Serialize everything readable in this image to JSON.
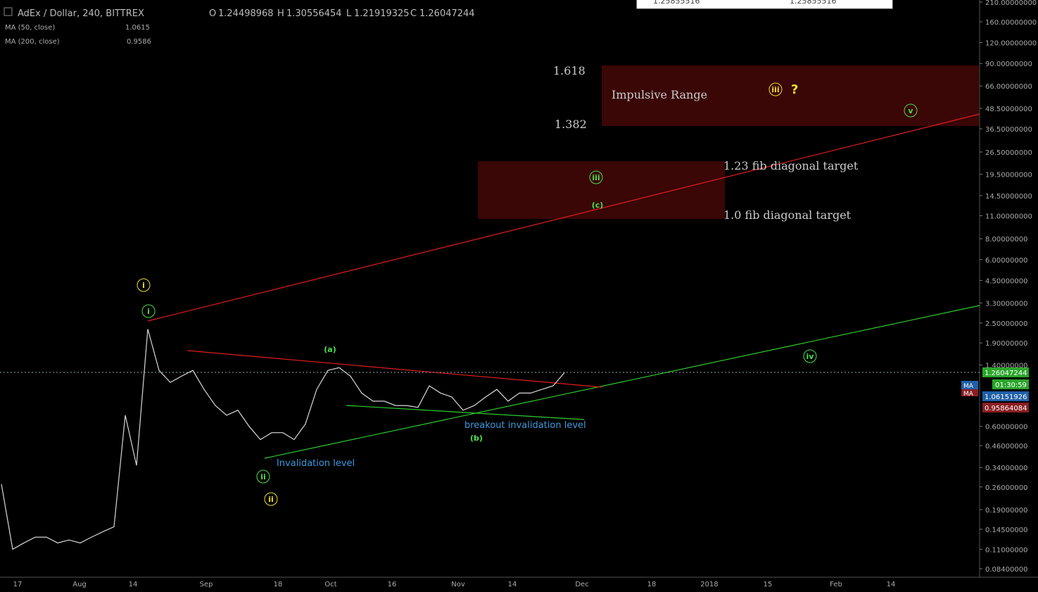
{
  "header": {
    "symbol": "AdEx / Dollar, 240, BITTREX",
    "o_label": "O",
    "open": "1.24498968",
    "h_label": "H",
    "high": "1.30556454",
    "l_label": "L",
    "low": "1.21919325",
    "c_label": "C",
    "close": "1.26047244"
  },
  "indicators": [
    {
      "name": "MA (50, close)",
      "value": "1.0615",
      "color": "#2f7fd6"
    },
    {
      "name": "MA (200, close)",
      "value": "0.9586",
      "color": "#a0262a"
    }
  ],
  "top_table": {
    "cells": [
      "1.25855516",
      "1.25855516"
    ]
  },
  "price_axis": {
    "ylim": [
      0.084,
      210
    ],
    "ticks": [
      {
        "value": 210,
        "label": "210.00000000"
      },
      {
        "value": 160,
        "label": "160.00000000"
      },
      {
        "value": 120,
        "label": "120.00000000"
      },
      {
        "value": 90,
        "label": "90.00000000"
      },
      {
        "value": 66,
        "label": "66.00000000"
      },
      {
        "value": 48.5,
        "label": "48.50000000"
      },
      {
        "value": 36.5,
        "label": "36.50000000"
      },
      {
        "value": 26.5,
        "label": "26.50000000"
      },
      {
        "value": 19.5,
        "label": "19.50000000"
      },
      {
        "value": 14.5,
        "label": "14.50000000"
      },
      {
        "value": 11,
        "label": "11.00000000"
      },
      {
        "value": 8,
        "label": "8.00000000"
      },
      {
        "value": 6,
        "label": "6.00000000"
      },
      {
        "value": 4.5,
        "label": "4.50000000"
      },
      {
        "value": 3.3,
        "label": "3.30000000"
      },
      {
        "value": 2.5,
        "label": "2.50000000"
      },
      {
        "value": 1.9,
        "label": "1.90000000"
      },
      {
        "value": 1.4,
        "label": "1.40000000"
      },
      {
        "value": 0.6,
        "label": "0.60000000"
      },
      {
        "value": 0.46,
        "label": "0.46000000"
      },
      {
        "value": 0.34,
        "label": "0.34000000"
      },
      {
        "value": 0.26,
        "label": "0.26000000"
      },
      {
        "value": 0.19,
        "label": "0.19000000"
      },
      {
        "value": 0.145,
        "label": "0.14500000"
      },
      {
        "value": 0.11,
        "label": "0.11000000"
      },
      {
        "value": 0.084,
        "label": "0.08400000"
      }
    ]
  },
  "time_axis": {
    "labels": [
      "17",
      "Aug",
      "14",
      "Sep",
      "18",
      "Oct",
      "16",
      "Nov",
      "14",
      "Dec",
      "18",
      "2018",
      "15",
      "Feb",
      "14"
    ]
  },
  "price": {
    "values": [
      0.27,
      0.11,
      0.12,
      0.13,
      0.13,
      0.12,
      0.125,
      0.12,
      0.13,
      0.14,
      0.15,
      0.7,
      0.35,
      2.3,
      1.3,
      1.1,
      1.2,
      1.3,
      1.0,
      0.8,
      0.7,
      0.75,
      0.6,
      0.5,
      0.55,
      0.55,
      0.5,
      0.62,
      1.0,
      1.3,
      1.35,
      1.2,
      0.95,
      0.85,
      0.85,
      0.8,
      0.8,
      0.78,
      1.05,
      0.95,
      0.9,
      0.75,
      0.8,
      0.9,
      1.0,
      0.85,
      0.95,
      0.95,
      1.0,
      1.05,
      1.26
    ]
  },
  "price_labels": {
    "last": "1.26047244",
    "timer": "01:30:59",
    "ma50_tag": "MA",
    "ma50": "1.06151926",
    "ma200_tag": "MA",
    "ma200": "0.95864084"
  },
  "annotations": {
    "fib_1618": "1.618",
    "fib_1382": "1.382",
    "impulsive_range": "Impulsive Range",
    "wave_iii_y": "iii",
    "question": "?",
    "wave_v": "v",
    "fib_123": "1.23 fib diagonal target",
    "fib_10": "1.0 fib diagonal target",
    "wave_iii_g": "iii",
    "wave_c": "(c)",
    "wave_i_y": "i",
    "wave_i_g": "i",
    "wave_a": "(a)",
    "wave_iv": "iv",
    "breakout": "breakout invalidation level",
    "wave_b": "(b)",
    "invalidation": "Invalidation level",
    "wave_ii_g": "ii",
    "wave_ii_y": "ii"
  }
}
